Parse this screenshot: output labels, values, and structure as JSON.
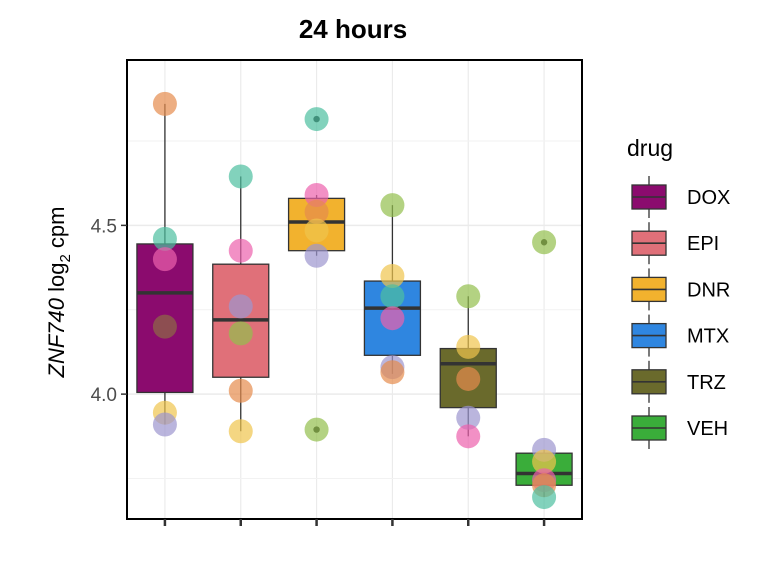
{
  "chart_data": {
    "type": "box",
    "title": "24 hours",
    "ylabel_gene": "ZNF740",
    "ylabel_unit_prefix": " log",
    "ylabel_subscript": "2",
    "ylabel_unit_suffix": " cpm",
    "xlabel": "",
    "categories": [
      "DOX",
      "EPI",
      "DNR",
      "MTX",
      "TRZ",
      "VEH"
    ],
    "y_ticks": [
      4.0,
      4.5
    ],
    "y_tick_labels": [
      "4.0",
      "4.5"
    ],
    "ylim": [
      3.63,
      4.99
    ],
    "grid": true,
    "legend": {
      "title": "drug",
      "position": "right",
      "entries": [
        "DOX",
        "EPI",
        "DNR",
        "MTX",
        "TRZ",
        "VEH"
      ]
    },
    "colors": {
      "DOX": "#8b0b6e",
      "EPI": "#e07079",
      "DNR": "#f2b22e",
      "MTX": "#2f86e0",
      "TRZ": "#6a6a2c",
      "VEH": "#3aad3a"
    },
    "point_colors": [
      "#e58b4d",
      "#4dbfa0",
      "#ec61ad",
      "#9d96cf",
      "#8f6b45",
      "#f0c44d",
      "#93bf4d"
    ],
    "boxes": [
      {
        "drug": "DOX",
        "q1": 4.005,
        "median": 4.3,
        "q3": 4.445,
        "whisker_low": 3.91,
        "whisker_high": 4.86,
        "outliers": []
      },
      {
        "drug": "EPI",
        "q1": 4.05,
        "median": 4.22,
        "q3": 4.385,
        "whisker_low": 3.89,
        "whisker_high": 4.645,
        "outliers": []
      },
      {
        "drug": "DNR",
        "q1": 4.425,
        "median": 4.51,
        "q3": 4.58,
        "whisker_low": 4.41,
        "whisker_high": 4.59,
        "outliers": [
          4.815,
          3.895
        ]
      },
      {
        "drug": "MTX",
        "q1": 4.115,
        "median": 4.255,
        "q3": 4.335,
        "whisker_low": 4.06,
        "whisker_high": 4.56,
        "outliers": []
      },
      {
        "drug": "TRZ",
        "q1": 3.96,
        "median": 4.09,
        "q3": 4.135,
        "whisker_low": 3.875,
        "whisker_high": 4.29,
        "outliers": []
      },
      {
        "drug": "VEH",
        "q1": 3.73,
        "median": 3.765,
        "q3": 3.825,
        "whisker_low": 3.695,
        "whisker_high": 3.835,
        "outliers": [
          4.45
        ]
      }
    ],
    "points": [
      {
        "drug": "DOX",
        "y": 4.86,
        "c": 0
      },
      {
        "drug": "DOX",
        "y": 4.46,
        "c": 1
      },
      {
        "drug": "DOX",
        "y": 4.4,
        "c": 2
      },
      {
        "drug": "DOX",
        "y": 4.2,
        "c": 4
      },
      {
        "drug": "DOX",
        "y": 3.945,
        "c": 5
      },
      {
        "drug": "DOX",
        "y": 3.91,
        "c": 3
      },
      {
        "drug": "EPI",
        "y": 4.645,
        "c": 1
      },
      {
        "drug": "EPI",
        "y": 4.425,
        "c": 2
      },
      {
        "drug": "EPI",
        "y": 4.26,
        "c": 3
      },
      {
        "drug": "EPI",
        "y": 4.18,
        "c": 6
      },
      {
        "drug": "EPI",
        "y": 4.01,
        "c": 0
      },
      {
        "drug": "EPI",
        "y": 3.89,
        "c": 5
      },
      {
        "drug": "DNR",
        "y": 4.815,
        "c": 1
      },
      {
        "drug": "DNR",
        "y": 4.59,
        "c": 2
      },
      {
        "drug": "DNR",
        "y": 4.54,
        "c": 0
      },
      {
        "drug": "DNR",
        "y": 4.485,
        "c": 5
      },
      {
        "drug": "DNR",
        "y": 4.41,
        "c": 3
      },
      {
        "drug": "DNR",
        "y": 3.895,
        "c": 6
      },
      {
        "drug": "MTX",
        "y": 4.56,
        "c": 6
      },
      {
        "drug": "MTX",
        "y": 4.35,
        "c": 5
      },
      {
        "drug": "MTX",
        "y": 4.29,
        "c": 1
      },
      {
        "drug": "MTX",
        "y": 4.225,
        "c": 2
      },
      {
        "drug": "MTX",
        "y": 4.08,
        "c": 3
      },
      {
        "drug": "MTX",
        "y": 4.065,
        "c": 0
      },
      {
        "drug": "TRZ",
        "y": 4.29,
        "c": 6
      },
      {
        "drug": "TRZ",
        "y": 4.14,
        "c": 5
      },
      {
        "drug": "TRZ",
        "y": 4.045,
        "c": 0
      },
      {
        "drug": "TRZ",
        "y": 3.93,
        "c": 3
      },
      {
        "drug": "TRZ",
        "y": 3.875,
        "c": 2
      },
      {
        "drug": "VEH",
        "y": 4.45,
        "c": 6
      },
      {
        "drug": "VEH",
        "y": 3.835,
        "c": 3
      },
      {
        "drug": "VEH",
        "y": 3.8,
        "c": 5
      },
      {
        "drug": "VEH",
        "y": 3.745,
        "c": 2
      },
      {
        "drug": "VEH",
        "y": 3.73,
        "c": 0
      },
      {
        "drug": "VEH",
        "y": 3.695,
        "c": 1
      }
    ]
  }
}
